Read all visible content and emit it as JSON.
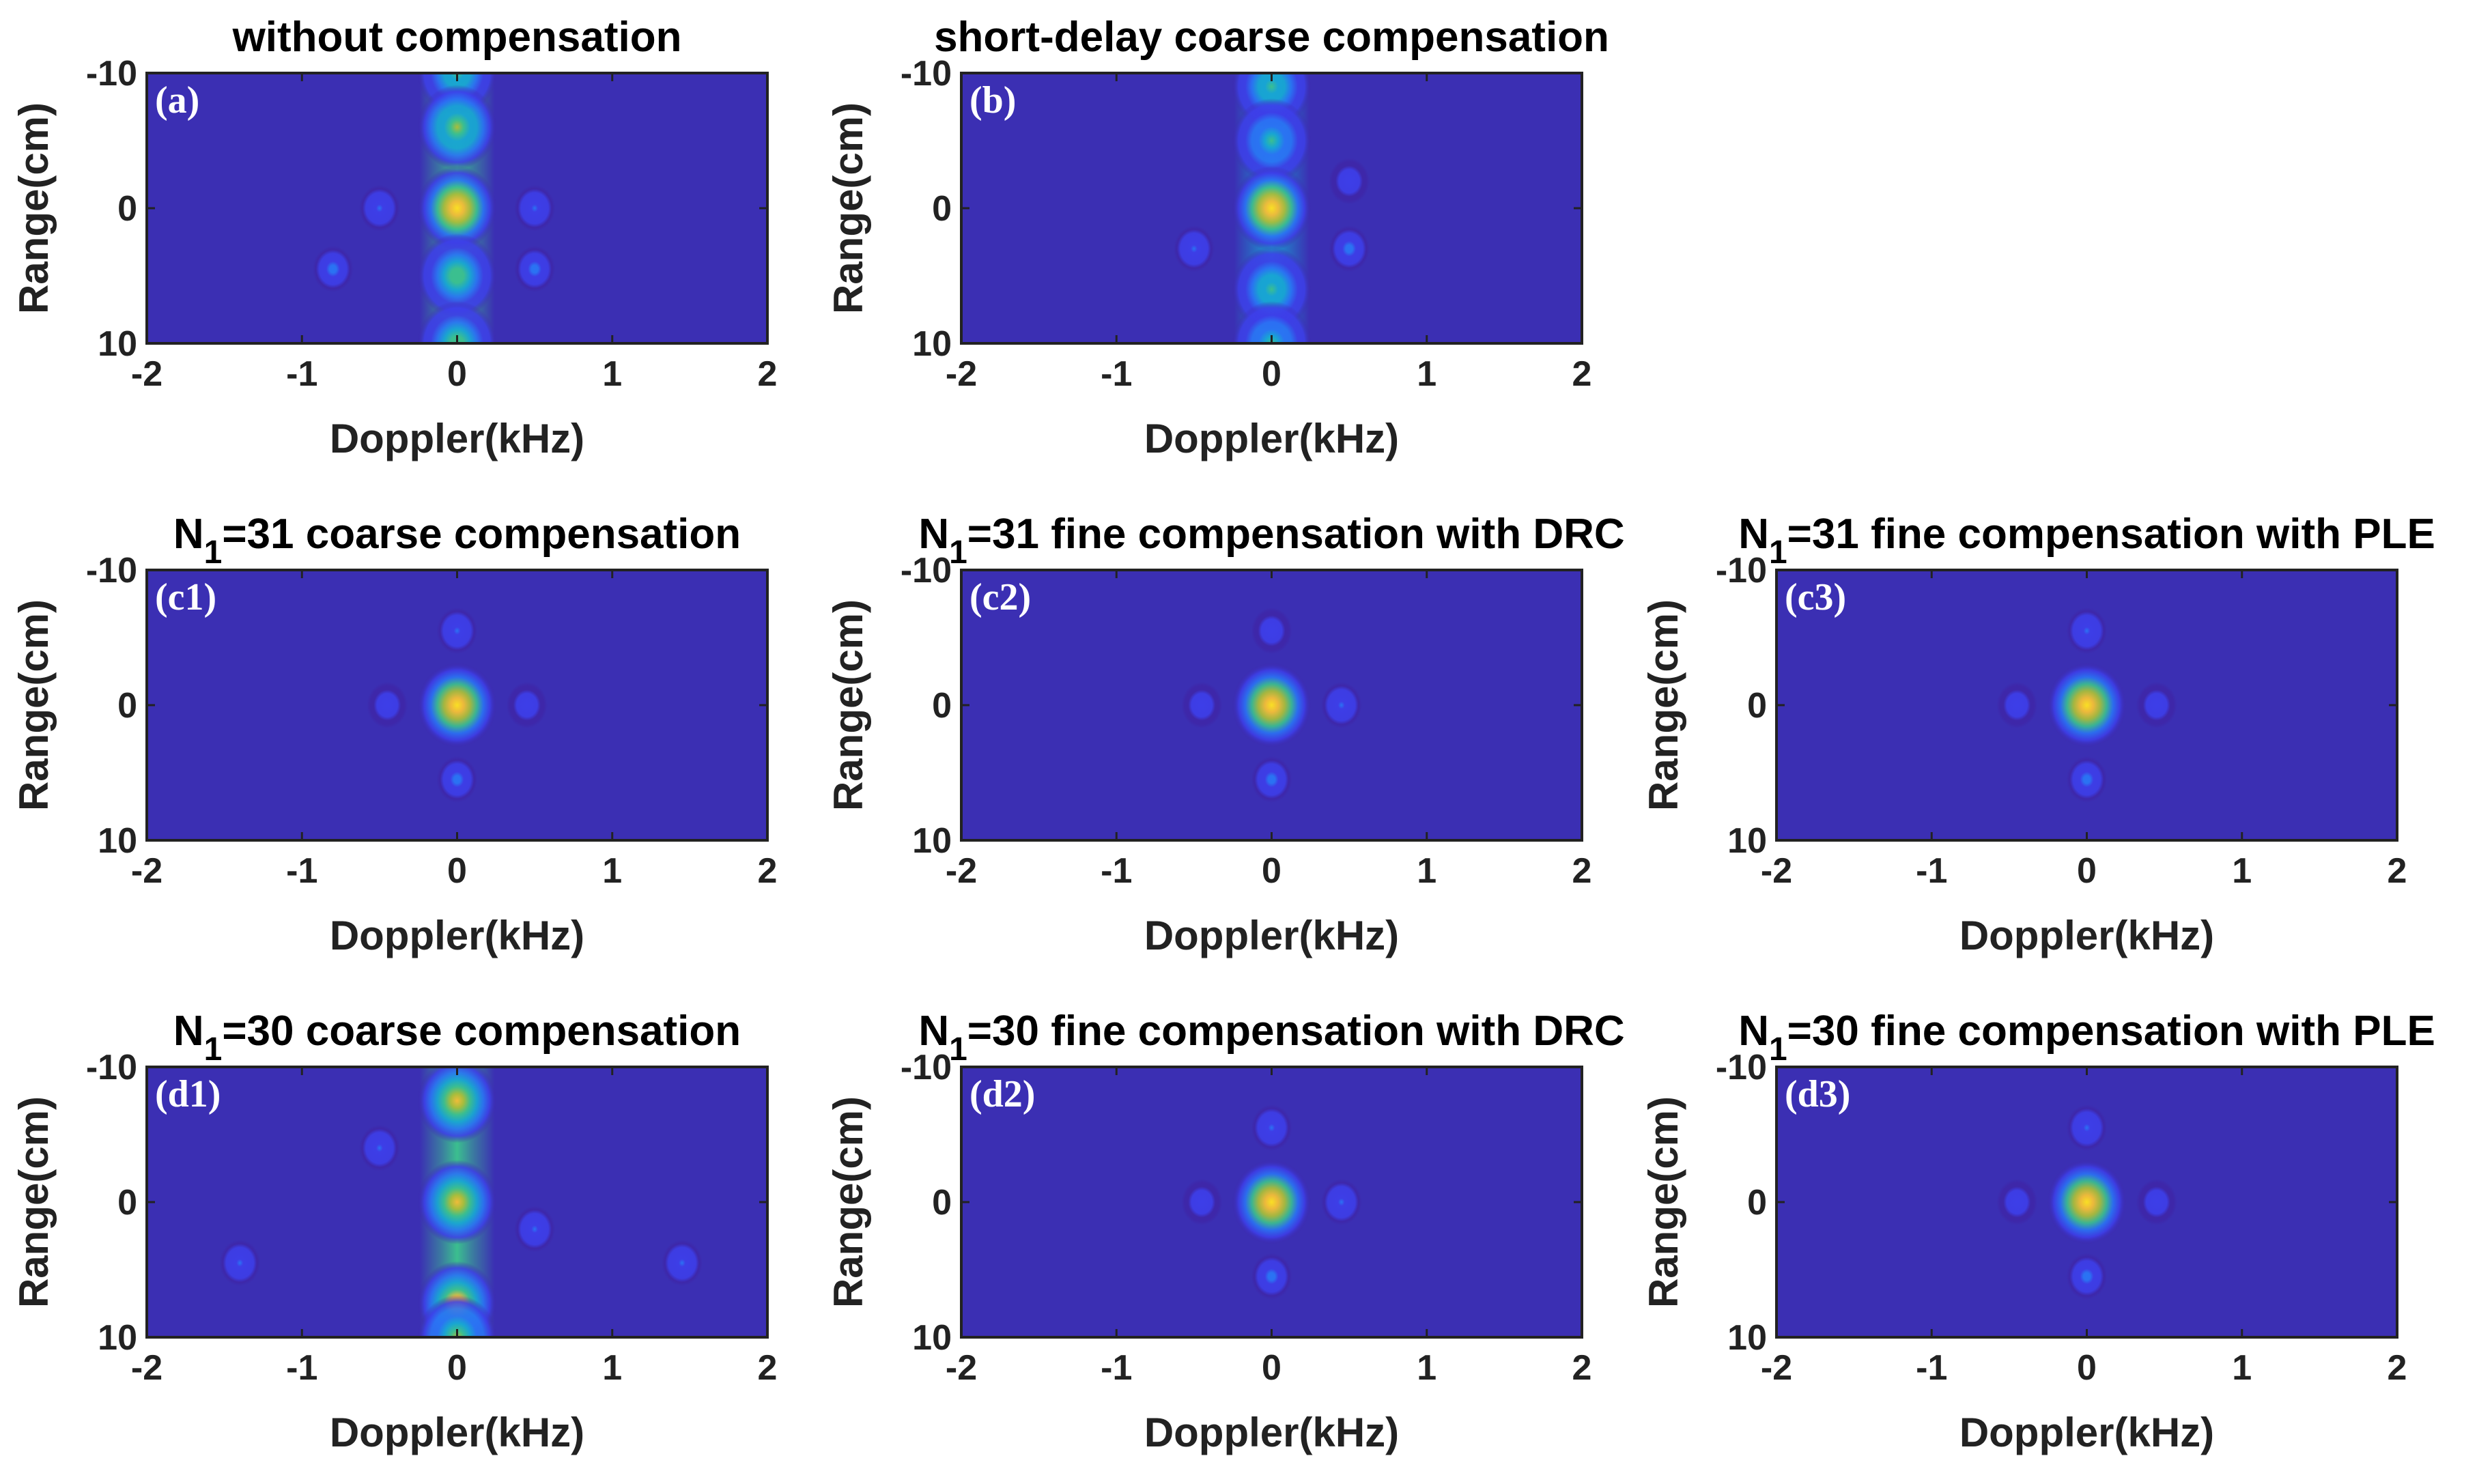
{
  "figure": {
    "colors": {
      "background": "#3b2fb3",
      "colormap": [
        "#3e26a8",
        "#3d3ee8",
        "#2a73f4",
        "#18a5d3",
        "#3bbf8f",
        "#a9bd3b",
        "#f0bc39",
        "#f9df24"
      ],
      "axis": "#222222",
      "panel_label": "#ffffff"
    }
  },
  "chart_data": [
    {
      "id": "a",
      "type": "heatmap",
      "panel_label": "(a)",
      "title": "without compensation",
      "xlabel": "Doppler(kHz)",
      "ylabel": "Range(cm)",
      "xlim": [
        -2,
        2
      ],
      "ylim": [
        -10,
        10
      ],
      "xticks": [
        "-2",
        "-1",
        "0",
        "1",
        "2"
      ],
      "yticks": [
        "-10",
        "0",
        "10"
      ],
      "peaks": [
        {
          "doppler_khz": 0,
          "range_cm": -10,
          "level": 0.55
        },
        {
          "doppler_khz": 0,
          "range_cm": -6,
          "level": 0.72
        },
        {
          "doppler_khz": 0,
          "range_cm": 0,
          "level": 1.0
        },
        {
          "doppler_khz": 0,
          "range_cm": 5,
          "level": 0.62
        },
        {
          "doppler_khz": 0,
          "range_cm": 10,
          "level": 0.6
        }
      ],
      "ridge": {
        "doppler_khz": 0,
        "level": 0.5
      },
      "sidelobes": [
        {
          "doppler_khz": -0.8,
          "range_cm": 4.5,
          "level": 0.28
        },
        {
          "doppler_khz": 0.5,
          "range_cm": 4.5,
          "level": 0.3
        },
        {
          "doppler_khz": -0.5,
          "range_cm": 0,
          "level": 0.22
        },
        {
          "doppler_khz": 0.5,
          "range_cm": 0,
          "level": 0.22
        }
      ]
    },
    {
      "id": "b",
      "type": "heatmap",
      "panel_label": "(b)",
      "title": "short-delay coarse compensation",
      "xlabel": "Doppler(kHz)",
      "ylabel": "Range(cm)",
      "xlim": [
        -2,
        2
      ],
      "ylim": [
        -10,
        10
      ],
      "xticks": [
        "-2",
        "-1",
        "0",
        "1",
        "2"
      ],
      "yticks": [
        "-10",
        "0",
        "10"
      ],
      "peaks": [
        {
          "doppler_khz": 0,
          "range_cm": -9,
          "level": 0.55
        },
        {
          "doppler_khz": 0,
          "range_cm": -5,
          "level": 0.5
        },
        {
          "doppler_khz": 0,
          "range_cm": 0,
          "level": 1.0
        },
        {
          "doppler_khz": 0,
          "range_cm": 6,
          "level": 0.55
        },
        {
          "doppler_khz": 0,
          "range_cm": 10,
          "level": 0.5
        }
      ],
      "ridge": {
        "doppler_khz": 0,
        "level": 0.45
      },
      "sidelobes": [
        {
          "doppler_khz": -0.5,
          "range_cm": 3,
          "level": 0.25
        },
        {
          "doppler_khz": 0.5,
          "range_cm": 3,
          "level": 0.28
        },
        {
          "doppler_khz": 0.5,
          "range_cm": -2,
          "level": 0.2
        }
      ]
    },
    {
      "id": "c1",
      "type": "heatmap",
      "panel_label": "(c1)",
      "title": "N",
      "title_sub": "1",
      "title_rest": "=31 coarse compensation",
      "xlabel": "Doppler(kHz)",
      "ylabel": "Range(cm)",
      "xlim": [
        -2,
        2
      ],
      "ylim": [
        -10,
        10
      ],
      "xticks": [
        "-2",
        "-1",
        "0",
        "1",
        "2"
      ],
      "yticks": [
        "-10",
        "0",
        "10"
      ],
      "peaks": [
        {
          "doppler_khz": 0,
          "range_cm": 0,
          "level": 1.0
        }
      ],
      "sidelobes": [
        {
          "doppler_khz": 0,
          "range_cm": -5.5,
          "level": 0.22
        },
        {
          "doppler_khz": 0,
          "range_cm": 5.5,
          "level": 0.3
        },
        {
          "doppler_khz": -0.45,
          "range_cm": 0,
          "level": 0.2
        },
        {
          "doppler_khz": 0.45,
          "range_cm": 0,
          "level": 0.2
        }
      ]
    },
    {
      "id": "c2",
      "type": "heatmap",
      "panel_label": "(c2)",
      "title": "N",
      "title_sub": "1",
      "title_rest": "=31 fine compensation with DRC",
      "xlabel": "Doppler(kHz)",
      "ylabel": "Range(cm)",
      "xlim": [
        -2,
        2
      ],
      "ylim": [
        -10,
        10
      ],
      "xticks": [
        "-2",
        "-1",
        "0",
        "1",
        "2"
      ],
      "yticks": [
        "-10",
        "0",
        "10"
      ],
      "peaks": [
        {
          "doppler_khz": 0,
          "range_cm": 0,
          "level": 1.0
        }
      ],
      "sidelobes": [
        {
          "doppler_khz": 0,
          "range_cm": -5.5,
          "level": 0.2
        },
        {
          "doppler_khz": 0,
          "range_cm": 5.5,
          "level": 0.28
        },
        {
          "doppler_khz": -0.45,
          "range_cm": 0,
          "level": 0.2
        },
        {
          "doppler_khz": 0.45,
          "range_cm": 0,
          "level": 0.22
        }
      ]
    },
    {
      "id": "c3",
      "type": "heatmap",
      "panel_label": "(c3)",
      "title": "N",
      "title_sub": "1",
      "title_rest": "=31 fine compensation with PLE",
      "xlabel": "Doppler(kHz)",
      "ylabel": "Range(cm)",
      "xlim": [
        -2,
        2
      ],
      "ylim": [
        -10,
        10
      ],
      "xticks": [
        "-2",
        "-1",
        "0",
        "1",
        "2"
      ],
      "yticks": [
        "-10",
        "0",
        "10"
      ],
      "peaks": [
        {
          "doppler_khz": 0,
          "range_cm": 0,
          "level": 1.0
        }
      ],
      "sidelobes": [
        {
          "doppler_khz": 0,
          "range_cm": -5.5,
          "level": 0.22
        },
        {
          "doppler_khz": 0,
          "range_cm": 5.5,
          "level": 0.28
        },
        {
          "doppler_khz": -0.45,
          "range_cm": 0,
          "level": 0.2
        },
        {
          "doppler_khz": 0.45,
          "range_cm": 0,
          "level": 0.2
        }
      ]
    },
    {
      "id": "d1",
      "type": "heatmap",
      "panel_label": "(d1)",
      "title": "N",
      "title_sub": "1",
      "title_rest": "=30 coarse compensation",
      "xlabel": "Doppler(kHz)",
      "ylabel": "Range(cm)",
      "xlim": [
        -2,
        2
      ],
      "ylim": [
        -10,
        10
      ],
      "xticks": [
        "-2",
        "-1",
        "0",
        "1",
        "2"
      ],
      "yticks": [
        "-10",
        "0",
        "10"
      ],
      "peaks": [
        {
          "doppler_khz": 0,
          "range_cm": -7.5,
          "level": 0.85
        },
        {
          "doppler_khz": 0,
          "range_cm": 0,
          "level": 0.9
        },
        {
          "doppler_khz": 0,
          "range_cm": 7.5,
          "level": 0.95
        },
        {
          "doppler_khz": 0,
          "range_cm": 10,
          "level": 0.7
        }
      ],
      "ridge": {
        "doppler_khz": 0,
        "level": 0.55
      },
      "sidelobes": [
        {
          "doppler_khz": -1.4,
          "range_cm": 4.5,
          "level": 0.25
        },
        {
          "doppler_khz": -0.5,
          "range_cm": -4,
          "level": 0.25
        },
        {
          "doppler_khz": 0.5,
          "range_cm": 2,
          "level": 0.25
        },
        {
          "doppler_khz": 1.45,
          "range_cm": 4.5,
          "level": 0.25
        }
      ]
    },
    {
      "id": "d2",
      "type": "heatmap",
      "panel_label": "(d2)",
      "title": "N",
      "title_sub": "1",
      "title_rest": "=30 fine compensation with DRC",
      "xlabel": "Doppler(kHz)",
      "ylabel": "Range(cm)",
      "xlim": [
        -2,
        2
      ],
      "ylim": [
        -10,
        10
      ],
      "xticks": [
        "-2",
        "-1",
        "0",
        "1",
        "2"
      ],
      "yticks": [
        "-10",
        "0",
        "10"
      ],
      "peaks": [
        {
          "doppler_khz": 0,
          "range_cm": 0,
          "level": 1.0
        }
      ],
      "sidelobes": [
        {
          "doppler_khz": 0,
          "range_cm": -5.5,
          "level": 0.22
        },
        {
          "doppler_khz": 0,
          "range_cm": 5.5,
          "level": 0.3
        },
        {
          "doppler_khz": -0.45,
          "range_cm": 0,
          "level": 0.2
        },
        {
          "doppler_khz": 0.45,
          "range_cm": 0,
          "level": 0.22
        }
      ]
    },
    {
      "id": "d3",
      "type": "heatmap",
      "panel_label": "(d3)",
      "title": "N",
      "title_sub": "1",
      "title_rest": "=30 fine compensation with PLE",
      "xlabel": "Doppler(kHz)",
      "ylabel": "Range(cm)",
      "xlim": [
        -2,
        2
      ],
      "ylim": [
        -10,
        10
      ],
      "xticks": [
        "-2",
        "-1",
        "0",
        "1",
        "2"
      ],
      "yticks": [
        "-10",
        "0",
        "10"
      ],
      "peaks": [
        {
          "doppler_khz": 0,
          "range_cm": 0,
          "level": 1.0
        }
      ],
      "sidelobes": [
        {
          "doppler_khz": 0,
          "range_cm": -5.5,
          "level": 0.22
        },
        {
          "doppler_khz": 0,
          "range_cm": 5.5,
          "level": 0.3
        },
        {
          "doppler_khz": -0.45,
          "range_cm": 0,
          "level": 0.2
        },
        {
          "doppler_khz": 0.45,
          "range_cm": 0,
          "level": 0.2
        }
      ]
    }
  ]
}
